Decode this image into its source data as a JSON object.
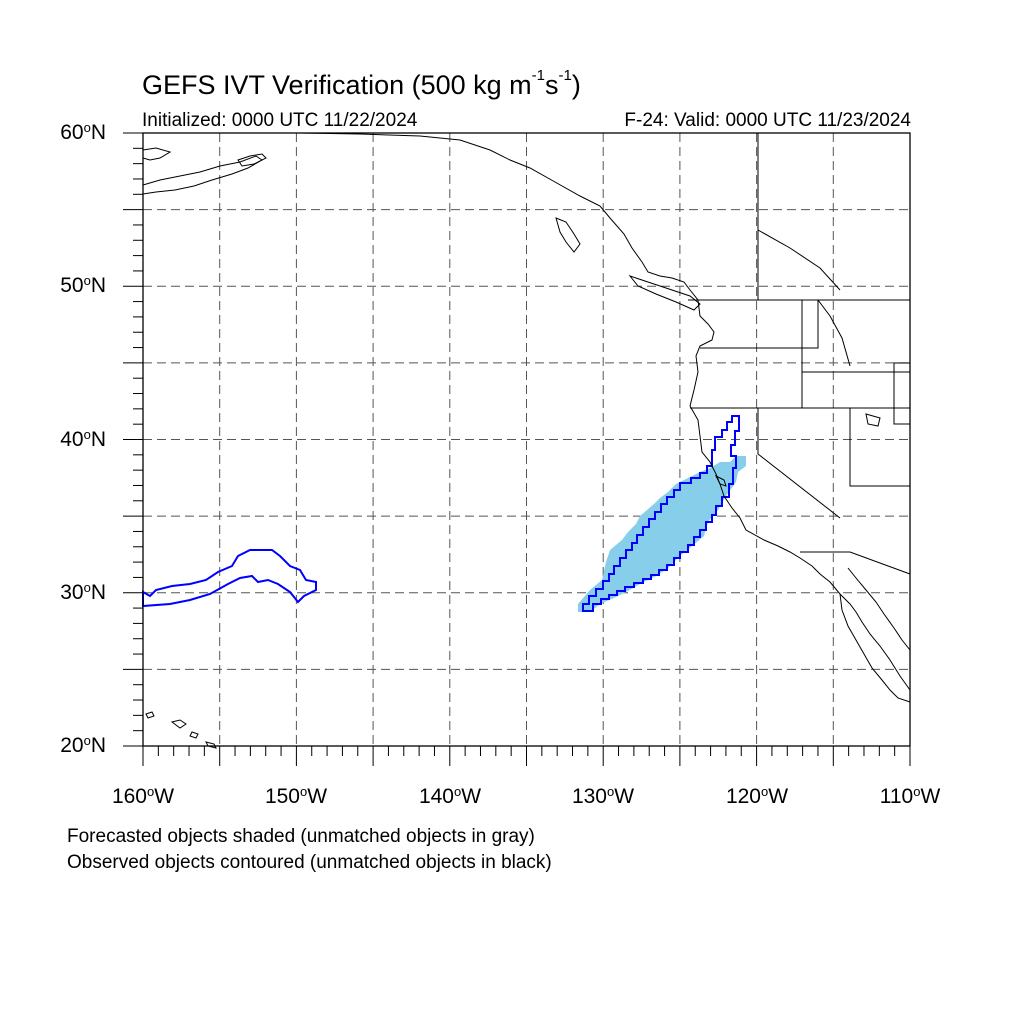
{
  "title": {
    "prefix": "GEFS IVT Verification (500 kg m",
    "exp1": "-1",
    "mid": "s",
    "exp2": "-1",
    "suffix": ")"
  },
  "initialized": "Initialized: 0000 UTC 11/22/2024",
  "valid": "F-24: Valid: 0000 UTC 11/23/2024",
  "map": {
    "lon_range": [
      -160,
      -110
    ],
    "lat_range": [
      20,
      60
    ],
    "grid": true,
    "lat_labels": [
      {
        "value": 60,
        "text": "60",
        "suffix": "N"
      },
      {
        "value": 50,
        "text": "50",
        "suffix": "N"
      },
      {
        "value": 40,
        "text": "40",
        "suffix": "N"
      },
      {
        "value": 30,
        "text": "30",
        "suffix": "N"
      },
      {
        "value": 20,
        "text": "20",
        "suffix": "N"
      }
    ],
    "lon_labels": [
      {
        "value": -160,
        "text": "160",
        "suffix": "W"
      },
      {
        "value": -150,
        "text": "150",
        "suffix": "W"
      },
      {
        "value": -140,
        "text": "140",
        "suffix": "W"
      },
      {
        "value": -130,
        "text": "130",
        "suffix": "W"
      },
      {
        "value": -120,
        "text": "120",
        "suffix": "W"
      },
      {
        "value": -110,
        "text": "110",
        "suffix": "W"
      }
    ],
    "colors": {
      "forecast_fill": "#87ceeb",
      "observed_contour": "#0000ff",
      "coastline": "#000000",
      "gridline": "#555555"
    }
  },
  "notes": {
    "forecast": "Forecasted objects shaded (unmatched objects in gray)",
    "observed": "Observed objects contoured (unmatched objects in black)"
  }
}
